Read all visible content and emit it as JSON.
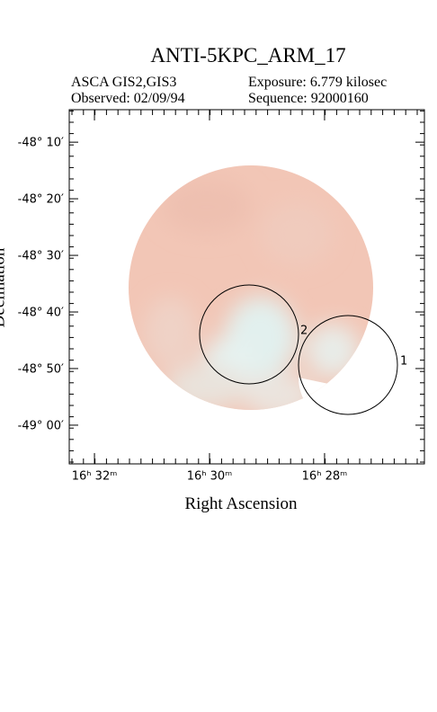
{
  "chart_data": {
    "type": "sky_image",
    "title": "ANTI-5KPC_ARM_17",
    "instrument": "ASCA GIS2,GIS3",
    "exposure": "Exposure: 6.779 kilosec",
    "observed": "Observed: 02/09/94",
    "sequence": "Sequence: 92000160",
    "xlabel": "Right Ascension",
    "ylabel": "Declination",
    "xlim": [
      16.5406,
      16.4378
    ],
    "xticks": [
      {
        "value": 16.5333,
        "label": "16ʰ 32ᵐ"
      },
      {
        "value": 16.5,
        "label": "16ʰ 30ᵐ"
      },
      {
        "value": 16.4667,
        "label": "16ʰ 28ᵐ"
      }
    ],
    "ylim": [
      -49.114,
      -48.071
    ],
    "yticks": [
      {
        "value": -48.1667,
        "label": "-48° 10′"
      },
      {
        "value": -48.3333,
        "label": "-48° 20′"
      },
      {
        "value": -48.5,
        "label": "-48° 30′"
      },
      {
        "value": -48.6667,
        "label": "-48° 40′"
      },
      {
        "value": -48.8333,
        "label": "-48° 50′"
      },
      {
        "value": -49.0,
        "label": "-49° 00′"
      }
    ],
    "sources": [
      {
        "label": "1"
      },
      {
        "label": "2"
      }
    ]
  }
}
